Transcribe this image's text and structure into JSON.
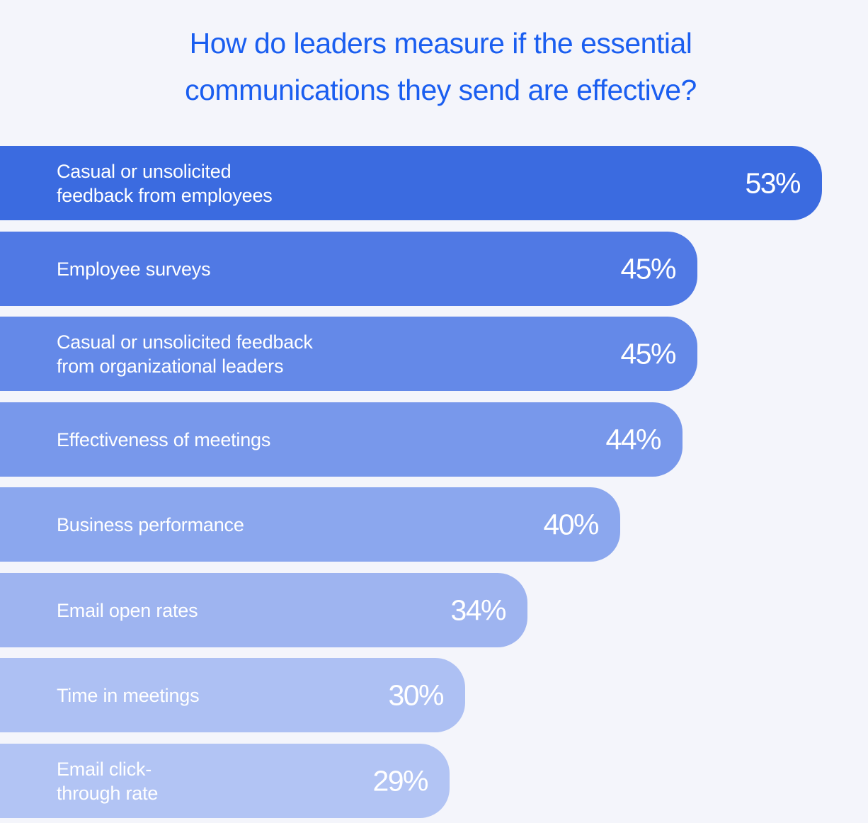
{
  "chart_data": {
    "type": "bar",
    "orientation": "horizontal",
    "title": "How do leaders measure if the essential communications they send are effective?",
    "title_lines": [
      "How do leaders measure if the essential",
      "communications they send are effective?"
    ],
    "categories": [
      "Casual or unsolicited\nfeedback from employees",
      "Employee surveys",
      "Casual or unsolicited feedback\nfrom organizational leaders",
      "Effectiveness of meetings",
      "Business performance",
      "Email open rates",
      "Time in meetings",
      "Email click-\nthrough rate"
    ],
    "values": [
      53,
      45,
      45,
      44,
      40,
      34,
      30,
      29
    ],
    "value_labels": [
      "53%",
      "45%",
      "45%",
      "44%",
      "40%",
      "34%",
      "30%",
      "29%"
    ],
    "unit": "%",
    "colors": [
      "#3b6be0",
      "#5079e4",
      "#6489e8",
      "#7898eb",
      "#8ba7ee",
      "#9eb4f0",
      "#adc0f3",
      "#b2c4f4"
    ],
    "title_color": "#1a5ef0",
    "xlabel": "",
    "ylabel": "",
    "grid": false
  }
}
